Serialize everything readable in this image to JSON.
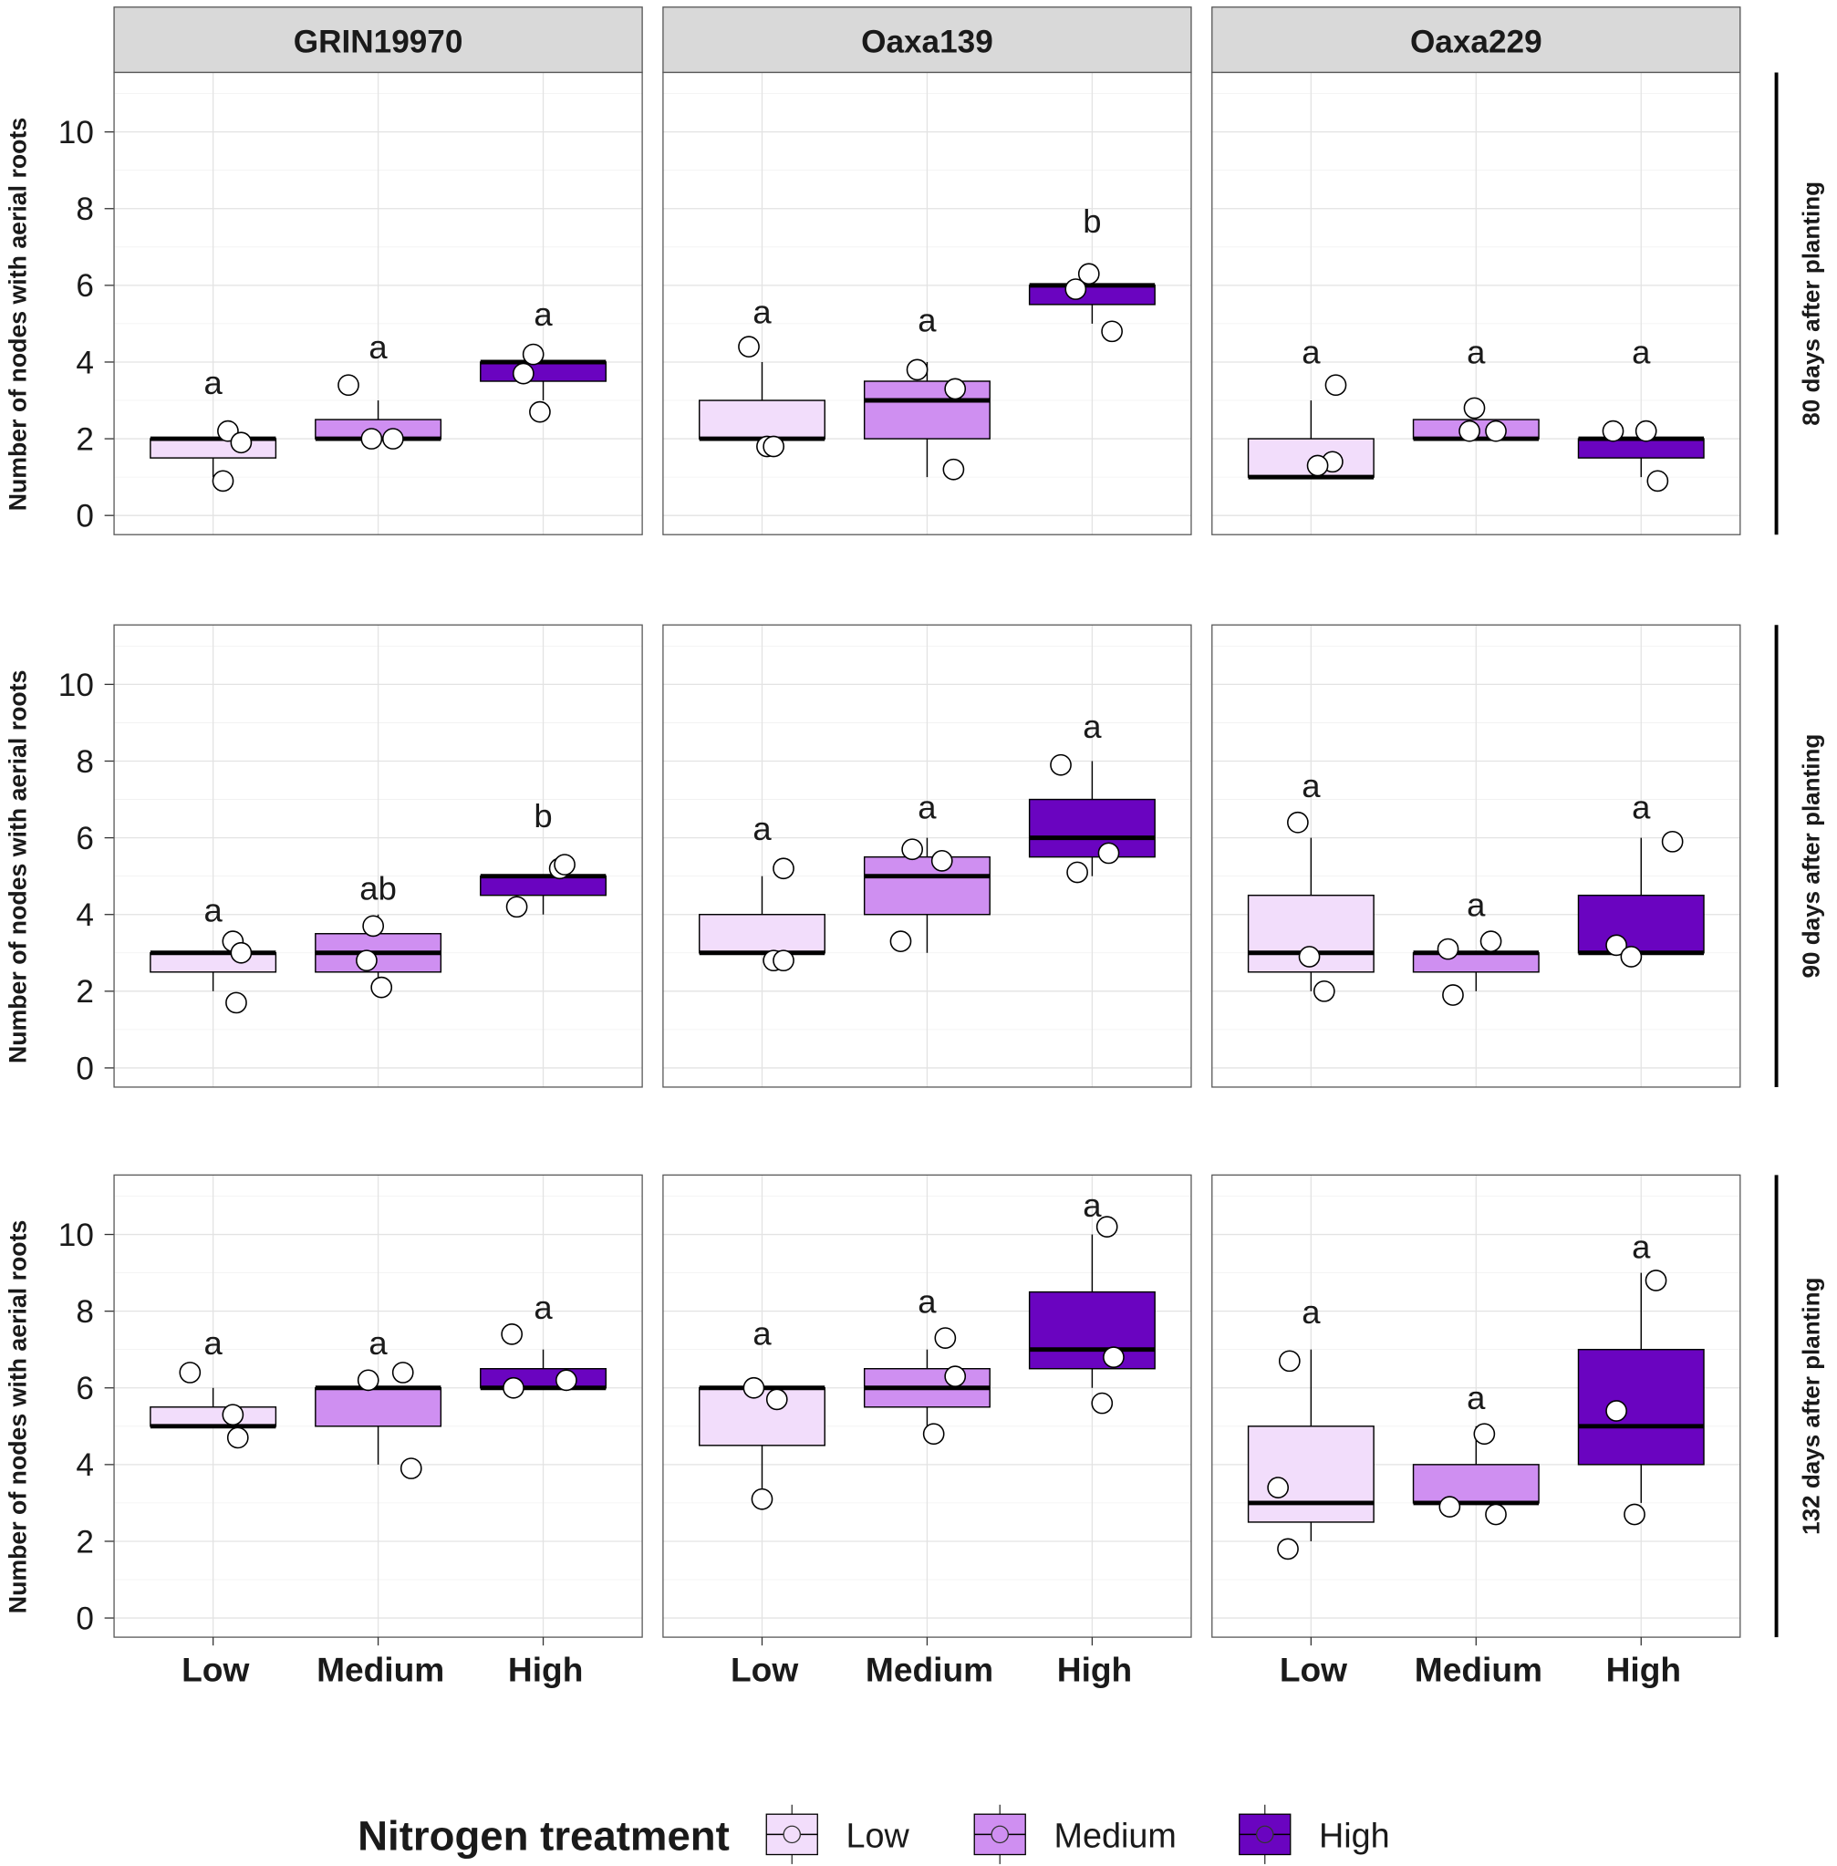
{
  "chart_data": {
    "type": "boxplot",
    "ylabel": "Number of nodes with aerial roots",
    "categories": [
      "Low",
      "Medium",
      "High"
    ],
    "yticks": [
      0,
      2,
      4,
      6,
      8,
      10
    ],
    "ylim": [
      -0.5,
      11.55
    ],
    "grid": true,
    "facet_columns": [
      "GRIN19970",
      "Oaxa139",
      "Oaxa229"
    ],
    "facet_rows": [
      "80 days after planting",
      "90 days after planting",
      "132 days after planting"
    ],
    "legend": {
      "title": "Nitrogen treatment",
      "position": "bottom",
      "items": [
        {
          "label": "Low",
          "color": "#f2ddfb"
        },
        {
          "label": "Medium",
          "color": "#cf8ff1"
        },
        {
          "label": "High",
          "color": "#6a04c0"
        }
      ]
    },
    "panels": [
      [
        {
          "groups": [
            {
              "min": 1,
              "q1": 1.5,
              "median": 2,
              "q3": 2,
              "max": 2,
              "letter": "a",
              "points": [
                2.2,
                1.9,
                0.9
              ]
            },
            {
              "min": 2,
              "q1": 2,
              "median": 2,
              "q3": 2.5,
              "max": 3,
              "letter": "a",
              "points": [
                3.4,
                2.0,
                2.0
              ]
            },
            {
              "min": 3,
              "q1": 3.5,
              "median": 4,
              "q3": 4,
              "max": 4,
              "letter": "a",
              "points": [
                4.2,
                3.7,
                2.7
              ]
            }
          ]
        },
        {
          "groups": [
            {
              "min": 2,
              "q1": 2,
              "median": 2,
              "q3": 3,
              "max": 4,
              "letter": "a",
              "points": [
                4.4,
                1.8,
                1.8
              ]
            },
            {
              "min": 1,
              "q1": 2,
              "median": 3,
              "q3": 3.5,
              "max": 4,
              "letter": "a",
              "points": [
                3.8,
                3.3,
                1.2
              ]
            },
            {
              "min": 5,
              "q1": 5.5,
              "median": 6,
              "q3": 6,
              "max": 6,
              "letter": "b",
              "points": [
                6.3,
                5.9,
                4.8
              ]
            }
          ]
        },
        {
          "groups": [
            {
              "min": 1,
              "q1": 1,
              "median": 1,
              "q3": 2,
              "max": 3,
              "letter": "a",
              "points": [
                3.4,
                1.4,
                1.3
              ]
            },
            {
              "min": 2,
              "q1": 2,
              "median": 2,
              "q3": 2.5,
              "max": 3,
              "letter": "a",
              "points": [
                2.8,
                2.2,
                2.2
              ]
            },
            {
              "min": 1,
              "q1": 1.5,
              "median": 2,
              "q3": 2,
              "max": 2,
              "letter": "a",
              "points": [
                2.2,
                2.2,
                0.9
              ]
            }
          ]
        }
      ],
      [
        {
          "groups": [
            {
              "min": 2,
              "q1": 2.5,
              "median": 3,
              "q3": 3,
              "max": 3,
              "letter": "a",
              "points": [
                3.3,
                3.0,
                1.7
              ]
            },
            {
              "min": 2,
              "q1": 2.5,
              "median": 3,
              "q3": 3.5,
              "max": 4,
              "letter": "ab",
              "points": [
                3.7,
                2.8,
                2.1
              ]
            },
            {
              "min": 4,
              "q1": 4.5,
              "median": 5,
              "q3": 5,
              "max": 5,
              "letter": "b",
              "points": [
                5.2,
                5.3,
                4.2
              ]
            }
          ]
        },
        {
          "groups": [
            {
              "min": 3,
              "q1": 3,
              "median": 3,
              "q3": 4,
              "max": 5,
              "letter": "a",
              "points": [
                5.2,
                2.8,
                2.8
              ]
            },
            {
              "min": 3,
              "q1": 4,
              "median": 5,
              "q3": 5.5,
              "max": 6,
              "letter": "a",
              "points": [
                5.7,
                5.4,
                3.3
              ]
            },
            {
              "min": 5,
              "q1": 5.5,
              "median": 6,
              "q3": 7,
              "max": 8,
              "letter": "a",
              "points": [
                7.9,
                5.6,
                5.1
              ]
            }
          ]
        },
        {
          "groups": [
            {
              "min": 2,
              "q1": 2.5,
              "median": 3,
              "q3": 4.5,
              "max": 6,
              "letter": "a",
              "points": [
                6.4,
                2.9,
                2.0
              ]
            },
            {
              "min": 2,
              "q1": 2.5,
              "median": 3,
              "q3": 3,
              "max": 3,
              "letter": "a",
              "points": [
                3.1,
                3.3,
                1.9
              ]
            },
            {
              "min": 3,
              "q1": 3,
              "median": 3,
              "q3": 4.5,
              "max": 6,
              "letter": "a",
              "points": [
                5.9,
                3.2,
                2.9
              ]
            }
          ]
        }
      ],
      [
        {
          "groups": [
            {
              "min": 5,
              "q1": 5,
              "median": 5,
              "q3": 5.5,
              "max": 6,
              "letter": "a",
              "points": [
                6.4,
                5.3,
                4.7
              ]
            },
            {
              "min": 4,
              "q1": 5,
              "median": 6,
              "q3": 6,
              "max": 6,
              "letter": "a",
              "points": [
                6.2,
                6.4,
                3.9
              ]
            },
            {
              "min": 6,
              "q1": 6,
              "median": 6,
              "q3": 6.5,
              "max": 7,
              "letter": "a",
              "points": [
                7.4,
                6.0,
                6.2
              ]
            }
          ]
        },
        {
          "groups": [
            {
              "min": 3,
              "q1": 4.5,
              "median": 6,
              "q3": 6,
              "max": 6,
              "letter": "a",
              "points": [
                6.0,
                5.7,
                3.1
              ]
            },
            {
              "min": 5,
              "q1": 5.5,
              "median": 6,
              "q3": 6.5,
              "max": 7,
              "letter": "a",
              "points": [
                7.3,
                6.3,
                4.8
              ]
            },
            {
              "min": 6,
              "q1": 6.5,
              "median": 7,
              "q3": 8.5,
              "max": 10,
              "letter": "a",
              "points": [
                10.2,
                6.8,
                5.6
              ]
            }
          ]
        },
        {
          "groups": [
            {
              "min": 2,
              "q1": 2.5,
              "median": 3,
              "q3": 5,
              "max": 7,
              "letter": "a",
              "points": [
                6.7,
                3.4,
                1.8
              ]
            },
            {
              "min": 3,
              "q1": 3,
              "median": 3,
              "q3": 4,
              "max": 5,
              "letter": "a",
              "points": [
                4.8,
                2.9,
                2.7
              ]
            },
            {
              "min": 3,
              "q1": 4,
              "median": 5,
              "q3": 7,
              "max": 9,
              "letter": "a",
              "points": [
                8.8,
                5.4,
                2.7
              ]
            }
          ]
        }
      ]
    ]
  }
}
